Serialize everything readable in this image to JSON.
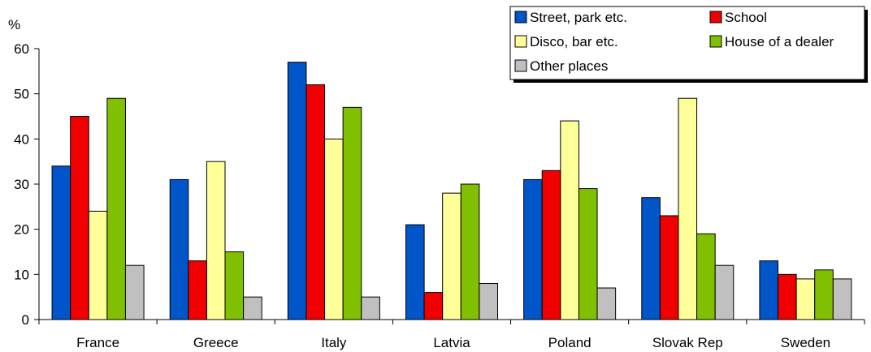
{
  "chart_data": {
    "type": "bar",
    "ylabel": "%",
    "ylim": [
      0,
      60
    ],
    "yticks": [
      0,
      10,
      20,
      30,
      40,
      50,
      60
    ],
    "grid": false,
    "legend_position": "top-right",
    "categories": [
      "France",
      "Greece",
      "Italy",
      "Latvia",
      "Poland",
      "Slovak Rep",
      "Sweden"
    ],
    "series": [
      {
        "name": "Street, park etc.",
        "color": "#0055c8",
        "values": [
          34,
          31,
          57,
          21,
          31,
          27,
          13
        ]
      },
      {
        "name": "School",
        "color": "#f00000",
        "values": [
          45,
          13,
          52,
          6,
          33,
          23,
          10
        ]
      },
      {
        "name": "Disco, bar etc.",
        "color": "#ffff99",
        "values": [
          24,
          35,
          40,
          28,
          44,
          49,
          9
        ]
      },
      {
        "name": "House of a dealer",
        "color": "#80c000",
        "values": [
          49,
          15,
          47,
          30,
          29,
          19,
          11
        ]
      },
      {
        "name": "Other places",
        "color": "#c0c0c0",
        "values": [
          12,
          5,
          5,
          8,
          7,
          12,
          9
        ]
      }
    ]
  }
}
